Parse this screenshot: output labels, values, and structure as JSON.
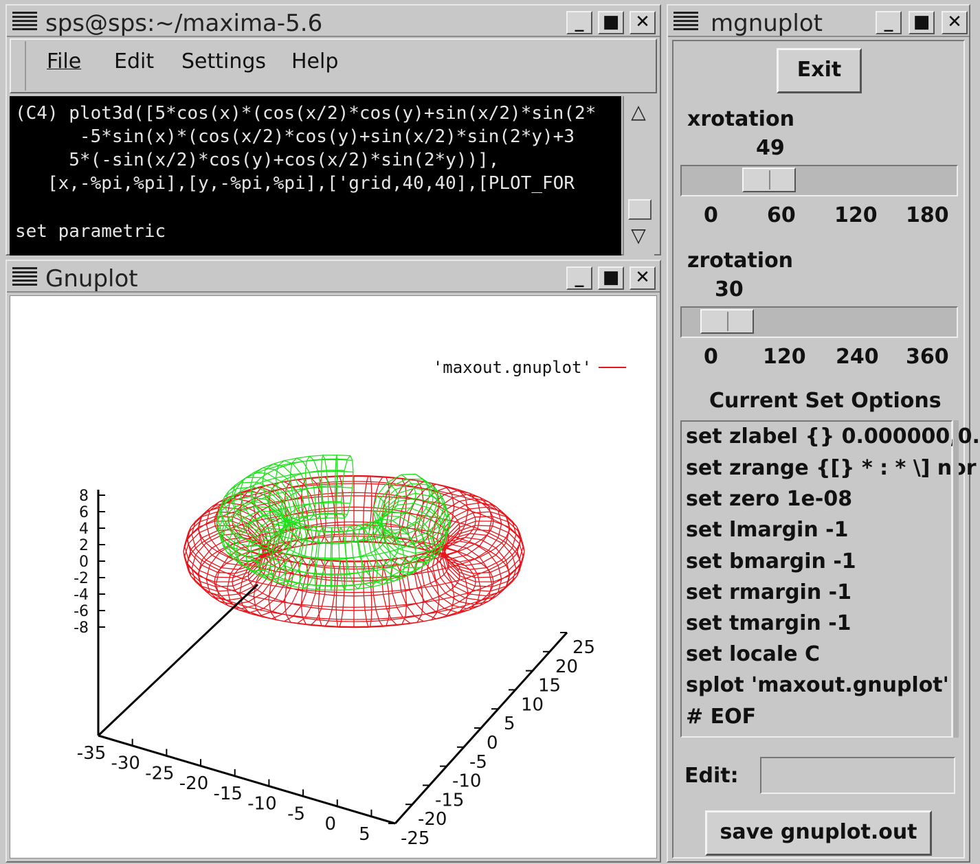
{
  "maxima": {
    "title": "sps@sps:~/maxima-5.6",
    "menu": [
      "File",
      "Edit",
      "Settings",
      "Help"
    ],
    "lines": [
      "(C4) plot3d([5*cos(x)*(cos(x/2)*cos(y)+sin(x/2)*sin(2*",
      "      -5*sin(x)*(cos(x/2)*cos(y)+sin(x/2)*sin(2*y)+3",
      "     5*(-sin(x/2)*cos(y)+cos(x/2)*sin(2*y))],",
      "   [x,-%pi,%pi],[y,-%pi,%pi],['grid,40,40],[PLOT_FOR",
      "",
      "set parametric"
    ]
  },
  "gnuplot": {
    "title": "Gnuplot",
    "legend": "'maxout.gnuplot'",
    "colors": {
      "outer": "#e8161c",
      "inner": "#22e01e"
    },
    "z_ticks": [
      "8",
      "6",
      "4",
      "2",
      "0",
      "-2",
      "-4",
      "-6",
      "-8"
    ],
    "x_ticks": [
      "-35",
      "-30",
      "-25",
      "-20",
      "-15",
      "-10",
      "-5",
      "0",
      "5"
    ],
    "y_ticks": [
      "-25",
      "-20",
      "-15",
      "-10",
      "-5",
      "0",
      "5",
      "10",
      "15",
      "20",
      "25"
    ]
  },
  "mgnuplot": {
    "title": "mgnuplot",
    "exit_label": "Exit",
    "xrotation": {
      "label": "xrotation",
      "value": "49",
      "level": 49,
      "max": 180,
      "ticks": [
        "0",
        "60",
        "120",
        "180"
      ]
    },
    "zrotation": {
      "label": "zrotation",
      "value": "30",
      "level": 30,
      "max": 360,
      "ticks": [
        "0",
        "120",
        "240",
        "360"
      ]
    },
    "options_heading": "Current Set Options",
    "options": [
      "set zlabel {} 0.000000,0.",
      "set zrange {[} * : * \\] nor",
      "set zero 1e-08",
      "set lmargin -1",
      "set bmargin -1",
      "set rmargin -1",
      "set tmargin -1",
      "set locale C",
      "splot 'maxout.gnuplot'",
      "# EOF"
    ],
    "edit_label": "Edit:",
    "edit_value": "",
    "save_label": "save gnuplot.out"
  }
}
